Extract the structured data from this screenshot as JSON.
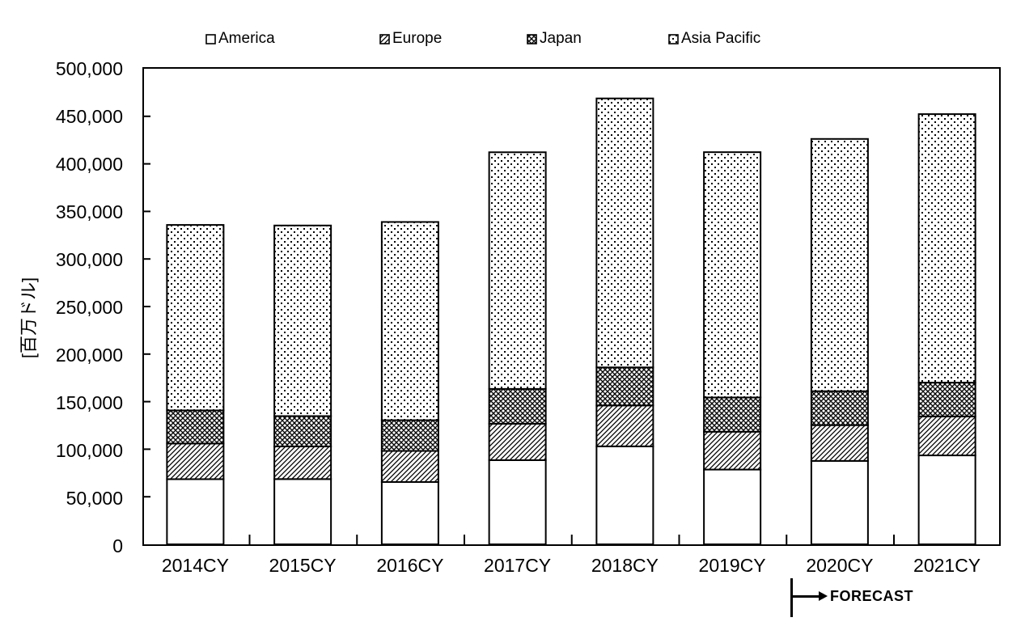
{
  "colors": {
    "foreground": "#000000",
    "background": "#ffffff"
  },
  "chart_data": {
    "type": "bar",
    "subtype": "stacked-vertical",
    "title": "",
    "xlabel": "",
    "ylabel": "[百万ドル]",
    "ylim": [
      0,
      500000
    ],
    "ytick_step": 50000,
    "ytick_labels": [
      "0",
      "50,000",
      "100,000",
      "150,000",
      "200,000",
      "250,000",
      "300,000",
      "350,000",
      "400,000",
      "450,000",
      "500,000"
    ],
    "categories": [
      "2014CY",
      "2015CY",
      "2016CY",
      "2017CY",
      "2018CY",
      "2019CY",
      "2020CY",
      "2021CY"
    ],
    "series": [
      {
        "name": "America",
        "pattern": "solid-white",
        "values": [
          68500,
          68600,
          65500,
          88500,
          103000,
          78600,
          87700,
          93500
        ]
      },
      {
        "name": "Europe",
        "pattern": "diagonal-hatch",
        "values": [
          37500,
          34300,
          32700,
          38300,
          43000,
          39800,
          37600,
          41000
        ]
      },
      {
        "name": "Japan",
        "pattern": "crosshatch",
        "values": [
          34800,
          31900,
          32300,
          36600,
          40000,
          36000,
          35700,
          35500
        ]
      },
      {
        "name": "Asia Pacific",
        "pattern": "dot-grid",
        "values": [
          195000,
          200400,
          208400,
          248800,
          282800,
          257900,
          265200,
          282300
        ]
      }
    ],
    "totals": [
      335800,
      335200,
      338900,
      412200,
      468800,
      412300,
      426200,
      452300
    ],
    "legend_position": "top",
    "gridlines": false,
    "annotation": {
      "label": "FORECAST",
      "applies_from_category": "2020CY"
    }
  }
}
